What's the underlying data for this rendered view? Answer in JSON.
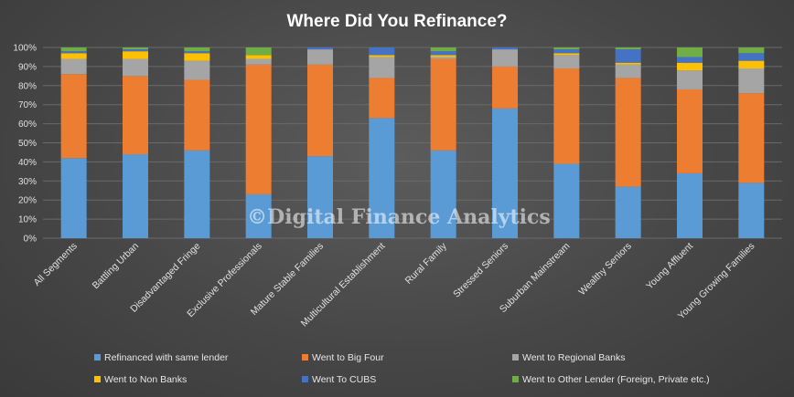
{
  "chart_data": {
    "type": "bar",
    "stacked": true,
    "title": "Where Did You Refinance?",
    "xlabel": "",
    "ylabel": "",
    "ylim": [
      0,
      100
    ],
    "yticks": [
      "0%",
      "10%",
      "20%",
      "30%",
      "40%",
      "50%",
      "60%",
      "70%",
      "80%",
      "90%",
      "100%"
    ],
    "grid": true,
    "legend_position": "bottom",
    "watermark": "©Digital Finance Analytics",
    "categories": [
      "All Segments",
      "Battling Urban",
      "Disadvantaged Fringe",
      "Exclusive Professionals",
      "Mature Stable Families",
      "Multicultural Establishment",
      "Rural Family",
      "Stressed Seniors",
      "Suburban Mainstream",
      "Wealthy Seniors",
      "Young Affluent",
      "Young Growing Families"
    ],
    "series": [
      {
        "name": "Refinanced with same lender",
        "color": "#5b9bd5",
        "values": [
          42,
          44,
          46,
          23,
          43,
          63,
          46,
          68,
          39,
          27,
          34,
          29
        ]
      },
      {
        "name": "Went to Big Four",
        "color": "#ed7d31",
        "values": [
          44,
          41,
          37,
          68,
          48,
          21,
          48,
          22,
          50,
          57,
          44,
          47
        ]
      },
      {
        "name": "Went to Regional Banks",
        "color": "#a5a5a5",
        "values": [
          8,
          9,
          10,
          3,
          8,
          11,
          1,
          9,
          7,
          7,
          10,
          13
        ]
      },
      {
        "name": "Went to Non Banks",
        "color": "#ffc000",
        "values": [
          3,
          4,
          4,
          2,
          0,
          1,
          1,
          0,
          1,
          1,
          4,
          4
        ]
      },
      {
        "name": "Went To CUBS",
        "color": "#4472c4",
        "values": [
          1,
          1,
          1,
          0,
          1,
          4,
          2,
          1,
          2,
          7,
          3,
          4
        ]
      },
      {
        "name": "Went to Other Lender (Foreign, Private etc.)",
        "color": "#70ad47",
        "values": [
          2,
          1,
          2,
          4,
          0,
          0,
          2,
          0,
          1,
          1,
          5,
          3
        ]
      }
    ]
  }
}
